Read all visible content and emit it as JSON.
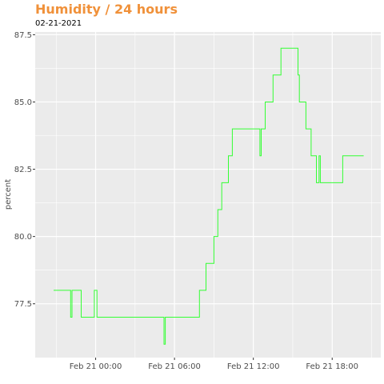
{
  "title": "Humidity / 24 hours",
  "subtitle": "02-21-2021",
  "colors": {
    "title": "#f0913a",
    "line": "#33ff33",
    "panel": "#ebebeb",
    "grid": "#ffffff"
  },
  "chart_data": {
    "type": "line",
    "title": "Humidity / 24 hours",
    "subtitle": "02-21-2021",
    "xlabel": "",
    "ylabel": "percent",
    "xlim": [
      -4.6,
      21.7
    ],
    "ylim": [
      75.5,
      87.6
    ],
    "x_ticks": [
      0,
      6,
      12,
      18
    ],
    "x_tick_labels": [
      "Feb 21 00:00",
      "Feb 21 06:00",
      "Feb 21 12:00",
      "Feb 21 18:00"
    ],
    "y_ticks": [
      77.5,
      80.0,
      82.5,
      85.0,
      87.5
    ],
    "y_tick_labels": [
      "77.5",
      "80.0",
      "82.5",
      "85.0",
      "87.5"
    ],
    "grid": true,
    "legend": "none",
    "x_unit": "hours after Feb 21 00:00",
    "series": [
      {
        "x": [
          -3.2,
          -1.9,
          -1.9,
          -1.8,
          -1.8,
          -1.1,
          -1.1,
          -0.1,
          -0.1,
          0.1,
          0.1,
          5.2,
          5.2,
          5.3,
          5.3,
          7.9,
          7.9,
          8.4,
          8.4,
          9.0,
          9.0,
          9.3,
          9.3,
          9.6,
          9.6,
          10.1,
          10.1,
          10.4,
          10.4,
          10.8,
          10.8,
          11.2,
          11.2,
          12.5,
          12.5,
          12.6,
          12.6,
          12.9,
          12.9,
          13.5,
          13.5,
          14.1,
          14.1,
          15.4,
          15.4,
          15.5,
          15.5,
          16.0,
          16.0,
          16.4,
          16.4,
          16.8,
          16.8,
          17.0,
          17.0,
          17.1,
          17.1,
          18.8,
          18.8,
          20.4
        ],
        "y": [
          78,
          78,
          77,
          77,
          78,
          78,
          77,
          77,
          78,
          78,
          77,
          77,
          76,
          76,
          77,
          77,
          78,
          78,
          79,
          79,
          80,
          80,
          81,
          81,
          82,
          82,
          83,
          83,
          84,
          84,
          84,
          84,
          84,
          84,
          83,
          83,
          84,
          84,
          85,
          85,
          86,
          86,
          87,
          87,
          86,
          86,
          85,
          85,
          84,
          84,
          83,
          83,
          82,
          82,
          83,
          83,
          82,
          82,
          83,
          83
        ]
      }
    ]
  }
}
